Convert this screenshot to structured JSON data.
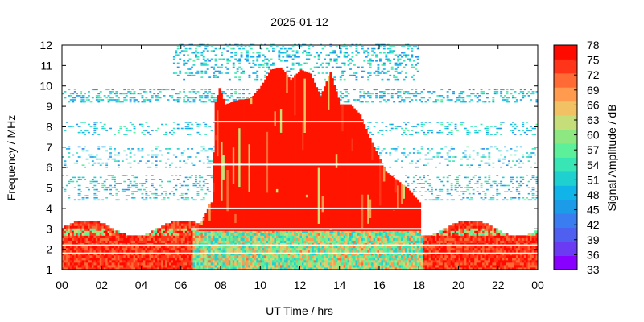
{
  "chart_data": {
    "type": "heatmap",
    "title": "2025-01-12",
    "xlabel": "UT Time / hrs",
    "ylabel": "Frequency / MHz",
    "xlim": [
      0,
      24
    ],
    "ylim": [
      1,
      12
    ],
    "x_tick_labels": [
      "00",
      "02",
      "04",
      "06",
      "08",
      "10",
      "12",
      "14",
      "16",
      "18",
      "20",
      "22",
      "00"
    ],
    "y_tick_labels": [
      "1",
      "2",
      "3",
      "4",
      "5",
      "6",
      "7",
      "8",
      "9",
      "10",
      "11",
      "12"
    ],
    "colorbar": {
      "label": "Signal Amplitude / dB",
      "range": [
        33,
        78
      ],
      "tick_labels": [
        "78",
        "75",
        "72",
        "69",
        "66",
        "63",
        "60",
        "57",
        "54",
        "51",
        "48",
        "45",
        "42",
        "39",
        "36",
        "33"
      ],
      "colors": [
        "#8800ff",
        "#6a3bf2",
        "#4f5ff0",
        "#3a7df0",
        "#1c9be9",
        "#10b4e8",
        "#1fd0d0",
        "#38e6b5",
        "#5cf09a",
        "#8ee882",
        "#c6de7a",
        "#f2c163",
        "#ff9a4e",
        "#ff6a35",
        "#ff3418",
        "#ff0a00"
      ]
    },
    "high_amplitude_region": {
      "description_hours_to_max_mhz": [
        [
          7.5,
          4.3
        ],
        [
          7.7,
          9.2
        ],
        [
          7.9,
          9.9
        ],
        [
          8.2,
          9.1
        ],
        [
          8.8,
          9.3
        ],
        [
          9.5,
          9.4
        ],
        [
          10.0,
          10.0
        ],
        [
          10.5,
          10.8
        ],
        [
          11.0,
          10.9
        ],
        [
          11.5,
          10.3
        ],
        [
          12.0,
          10.8
        ],
        [
          12.5,
          10.6
        ],
        [
          13.0,
          9.5
        ],
        [
          13.5,
          10.7
        ],
        [
          14.0,
          9.1
        ],
        [
          14.5,
          9.1
        ],
        [
          15.0,
          8.6
        ],
        [
          15.6,
          7.2
        ],
        [
          16.3,
          5.8
        ],
        [
          17.4,
          5.0
        ],
        [
          18.0,
          4.3
        ]
      ],
      "lower_band_mhz": [
        1.0,
        3.4
      ],
      "value_db": 78
    }
  }
}
